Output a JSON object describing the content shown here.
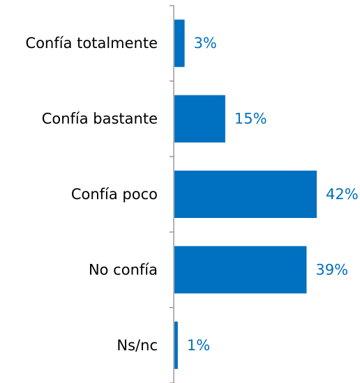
{
  "chart_data": {
    "type": "bar",
    "orientation": "horizontal",
    "categories": [
      "Confía totalmente",
      "Confía bastante",
      "Confía poco",
      "No confía",
      "Ns/nc"
    ],
    "values": [
      3,
      15,
      42,
      39,
      1
    ],
    "value_labels": [
      "3%",
      "15%",
      "42%",
      "39%",
      "1%"
    ],
    "unit": "%",
    "xlim": [
      0,
      42
    ],
    "grid": false,
    "legend": "none",
    "colors": {
      "bar": "#0070c0",
      "value_label": "#0070c0",
      "category_label": "#000000",
      "axis": "#8c8c8c"
    }
  }
}
